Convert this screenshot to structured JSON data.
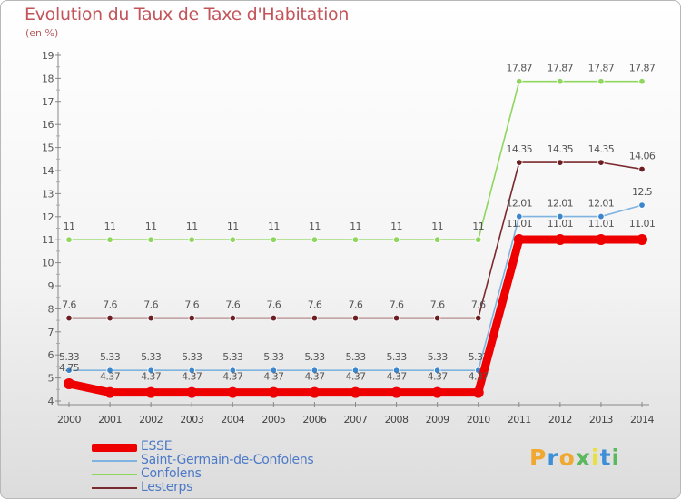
{
  "title": "Evolution du Taux de Taxe d'Habitation",
  "subtitle": "(en %)",
  "brand": {
    "text": "Proxiti",
    "letter_colors": [
      "#f0a830",
      "#3d8fd8",
      "#f0a830",
      "#5cb85c",
      "#e8e040",
      "#3d8fd8",
      "#5cb85c"
    ]
  },
  "chart_data": {
    "type": "line",
    "x": [
      "2000",
      "2001",
      "2002",
      "2003",
      "2004",
      "2005",
      "2006",
      "2007",
      "2008",
      "2009",
      "2010",
      "2011",
      "2012",
      "2013",
      "2014"
    ],
    "ylim": [
      4,
      19
    ],
    "yticks": [
      "4",
      "5",
      "6",
      "7",
      "8",
      "9",
      "10",
      "11",
      "12",
      "13",
      "14",
      "15",
      "16",
      "17",
      "18",
      "19"
    ],
    "grid": false,
    "series": [
      {
        "name": "Confolens",
        "color": "#8fd65f",
        "values": [
          11,
          11,
          11,
          11,
          11,
          11,
          11,
          11,
          11,
          11,
          11,
          17.87,
          17.87,
          17.87,
          17.87
        ],
        "labels": [
          "11",
          "11",
          "11",
          "11",
          "11",
          "11",
          "11",
          "11",
          "11",
          "11",
          "11",
          "17.87",
          "17.87",
          "17.87",
          "17.87"
        ]
      },
      {
        "name": "Lesterps",
        "color": "#7a2a2e",
        "values": [
          7.6,
          7.6,
          7.6,
          7.6,
          7.6,
          7.6,
          7.6,
          7.6,
          7.6,
          7.6,
          7.6,
          14.35,
          14.35,
          14.35,
          14.06
        ],
        "labels": [
          "7.6",
          "7.6",
          "7.6",
          "7.6",
          "7.6",
          "7.6",
          "7.6",
          "7.6",
          "7.6",
          "7.6",
          "7.6",
          "14.35",
          "14.35",
          "14.35",
          "14.06"
        ]
      },
      {
        "name": "Saint-Germain-de-Confolens",
        "color": "#7fb3e0",
        "values": [
          5.33,
          5.33,
          5.33,
          5.33,
          5.33,
          5.33,
          5.33,
          5.33,
          5.33,
          5.33,
          5.33,
          12.01,
          12.01,
          12.01,
          12.5
        ],
        "labels": [
          "5.33",
          "5.33",
          "5.33",
          "5.33",
          "5.33",
          "5.33",
          "5.33",
          "5.33",
          "5.33",
          "5.33",
          "5.33",
          "12.01",
          "12.01",
          "12.01",
          "12.5"
        ]
      },
      {
        "name": "ESSE",
        "color": "#ee0000",
        "values": [
          4.75,
          4.37,
          4.37,
          4.37,
          4.37,
          4.37,
          4.37,
          4.37,
          4.37,
          4.37,
          4.37,
          11.01,
          11.01,
          11.01,
          11.01
        ],
        "labels": [
          "4.75",
          "4.37",
          "4.37",
          "4.37",
          "4.37",
          "4.37",
          "4.37",
          "4.37",
          "4.37",
          "4.37",
          "4.37",
          "11.01",
          "11.01",
          "11.01",
          "11.01"
        ]
      }
    ],
    "legend": [
      {
        "name": "ESSE",
        "color": "#ee0000",
        "thick": true
      },
      {
        "name": "Saint-Germain-de-Confolens",
        "color": "#7fb3e0",
        "thick": false
      },
      {
        "name": "Confolens",
        "color": "#8fd65f",
        "thick": false
      },
      {
        "name": "Lesterps",
        "color": "#7a2a2e",
        "thick": false
      }
    ]
  }
}
